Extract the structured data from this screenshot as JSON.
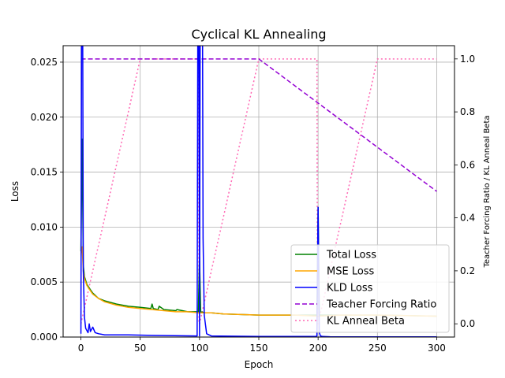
{
  "chart_data": {
    "type": "line",
    "title": "Cyclical KL Annealing",
    "xlabel": "Epoch",
    "ylabel": "Loss",
    "y2label": "Teacher Forcing Ratio / KL Anneal Beta",
    "xlim": [
      -15,
      315
    ],
    "ylim": [
      0,
      0.0265
    ],
    "y2lim": [
      -0.05,
      1.05
    ],
    "xticks": [
      "0",
      "50",
      "100",
      "150",
      "200",
      "250",
      "300"
    ],
    "yticks": [
      "0.000",
      "0.005",
      "0.010",
      "0.015",
      "0.020",
      "0.025"
    ],
    "y2ticks": [
      "0.0",
      "0.2",
      "0.4",
      "0.6",
      "0.8",
      "1.0"
    ],
    "grid": true,
    "legend_position": "bottom-right",
    "series": [
      {
        "name": "Total Loss",
        "axis": "left",
        "color": "#008000",
        "dash": "solid",
        "x": [
          0,
          1,
          2,
          3,
          5,
          8,
          10,
          15,
          20,
          30,
          40,
          50,
          59,
          60,
          61,
          65,
          66,
          70,
          80,
          81,
          90,
          99,
          100,
          101,
          105,
          110,
          120,
          150,
          199,
          200,
          201,
          210,
          250,
          300
        ],
        "y": [
          0.0078,
          0.018,
          0.0065,
          0.0055,
          0.0048,
          0.0043,
          0.004,
          0.0035,
          0.0033,
          0.003,
          0.0028,
          0.0027,
          0.0026,
          0.003,
          0.0026,
          0.0025,
          0.0028,
          0.0025,
          0.0024,
          0.0025,
          0.0023,
          0.0023,
          0.0073,
          0.0023,
          0.0022,
          0.0022,
          0.0021,
          0.002,
          0.002,
          0.0118,
          0.002,
          0.002,
          0.002,
          0.0019
        ]
      },
      {
        "name": "MSE Loss",
        "axis": "left",
        "color": "#ffa500",
        "dash": "solid",
        "x": [
          0,
          1,
          2,
          3,
          5,
          8,
          10,
          15,
          20,
          30,
          40,
          50,
          60,
          70,
          80,
          90,
          100,
          110,
          120,
          150,
          180,
          200,
          220,
          250,
          300
        ],
        "y": [
          0.0075,
          0.0082,
          0.006,
          0.0053,
          0.0047,
          0.0042,
          0.0039,
          0.0035,
          0.0032,
          0.0029,
          0.0027,
          0.0026,
          0.0025,
          0.0024,
          0.0023,
          0.0023,
          0.0022,
          0.0022,
          0.0021,
          0.002,
          0.002,
          0.0019,
          0.002,
          0.002,
          0.0019
        ]
      },
      {
        "name": "KLD Loss",
        "axis": "left",
        "color": "#0000ff",
        "dash": "solid",
        "x": [
          0,
          1,
          2,
          3,
          4,
          5,
          6,
          7,
          8,
          10,
          12,
          15,
          20,
          40,
          60,
          98,
          99,
          100,
          101,
          102,
          103,
          104,
          106,
          110,
          150,
          198,
          199,
          200,
          201,
          202,
          204,
          210,
          250,
          300
        ],
        "y": [
          0.0003,
          0.05,
          0.006,
          0.0018,
          0.0008,
          0.0006,
          0.0004,
          0.0012,
          0.0005,
          0.0009,
          0.0004,
          0.0003,
          0.0002,
          0.0002,
          0.00015,
          0.0001,
          0.05,
          0.0001,
          0.05,
          0.05,
          0.009,
          0.002,
          0.0003,
          0.0001,
          5e-05,
          5e-05,
          0.0001,
          0.0118,
          0.0004,
          0.0001,
          5e-05,
          3e-05,
          2e-05,
          2e-05
        ]
      },
      {
        "name": "Teacher Forcing Ratio",
        "axis": "right",
        "color": "#9400d3",
        "dash": "dashed",
        "x": [
          0,
          150,
          300
        ],
        "y": [
          1.0,
          1.0,
          0.5
        ]
      },
      {
        "name": "KL Anneal Beta",
        "axis": "right",
        "color": "#ff69b4",
        "dash": "dotted",
        "x": [
          0,
          50,
          99,
          99.5,
          100,
          150,
          199,
          199.5,
          200,
          250,
          300
        ],
        "y": [
          0.0,
          1.0,
          1.0,
          0.0,
          0.0,
          1.0,
          1.0,
          0.0,
          0.0,
          1.0,
          1.0
        ]
      }
    ]
  }
}
